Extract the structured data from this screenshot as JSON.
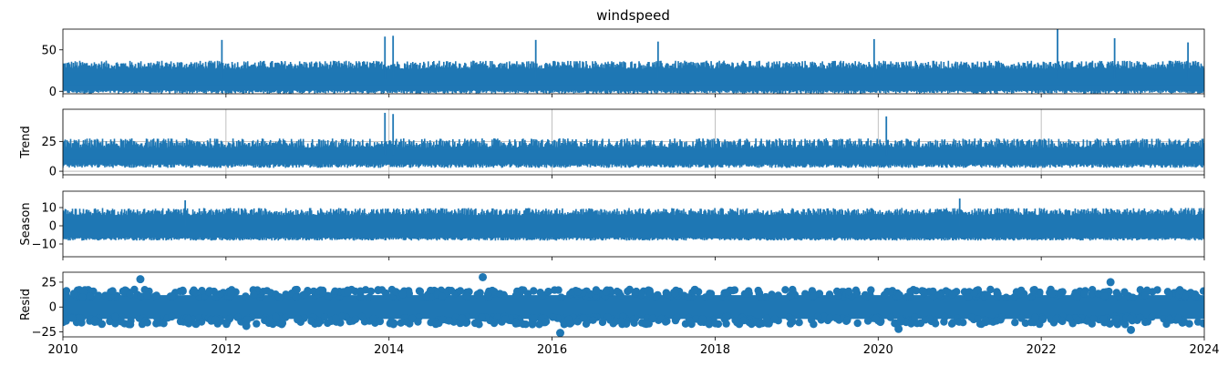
{
  "chart_data": {
    "type": "line",
    "title": "windspeed",
    "x_ticks": [
      "2010",
      "2012",
      "2014",
      "2016",
      "2018",
      "2020",
      "2022",
      "2024"
    ],
    "xlim": [
      2010,
      2024
    ],
    "color": "#1f77b4",
    "grid_color": "#b0b0b0",
    "panels": [
      {
        "key": "observed",
        "type": "line",
        "ylabel": "",
        "ylim": [
          -3,
          75
        ],
        "y_ticks": [
          0,
          50
        ],
        "grid": false,
        "base_range": [
          0,
          30
        ],
        "noise": 10,
        "spikes": [
          {
            "x": 2011.95,
            "y": 62
          },
          {
            "x": 2013.95,
            "y": 66
          },
          {
            "x": 2014.05,
            "y": 67
          },
          {
            "x": 2015.8,
            "y": 62
          },
          {
            "x": 2017.3,
            "y": 60
          },
          {
            "x": 2019.95,
            "y": 63
          },
          {
            "x": 2022.2,
            "y": 75
          },
          {
            "x": 2022.9,
            "y": 64
          },
          {
            "x": 2023.8,
            "y": 59
          }
        ]
      },
      {
        "key": "trend",
        "type": "line",
        "ylabel": "Trend",
        "ylim": [
          -3,
          52
        ],
        "y_ticks": [
          0,
          25
        ],
        "grid": true,
        "base_range": [
          5,
          22
        ],
        "noise": 8,
        "spikes": [
          {
            "x": 2013.95,
            "y": 49
          },
          {
            "x": 2014.05,
            "y": 48
          },
          {
            "x": 2020.1,
            "y": 46
          }
        ]
      },
      {
        "key": "season",
        "type": "line",
        "ylabel": "Season",
        "ylim": [
          -17,
          19
        ],
        "y_ticks": [
          10,
          0,
          -10
        ],
        "grid": false,
        "base_range": [
          -7,
          7
        ],
        "noise": 4,
        "spikes": [
          {
            "x": 2011.5,
            "y": 14
          },
          {
            "x": 2021.0,
            "y": 15
          }
        ]
      },
      {
        "key": "resid",
        "type": "scatter",
        "ylabel": "Resid",
        "ylim": [
          -30,
          35
        ],
        "y_ticks": [
          25,
          0,
          -25
        ],
        "grid": false,
        "base_range": [
          -12,
          12
        ],
        "noise": 4,
        "spikes": [
          {
            "x": 2010.95,
            "y": 28
          },
          {
            "x": 2012.25,
            "y": -19
          },
          {
            "x": 2015.15,
            "y": 30
          },
          {
            "x": 2016.1,
            "y": -26
          },
          {
            "x": 2020.25,
            "y": -22
          },
          {
            "x": 2022.85,
            "y": 25
          },
          {
            "x": 2023.1,
            "y": -23
          }
        ]
      }
    ]
  }
}
